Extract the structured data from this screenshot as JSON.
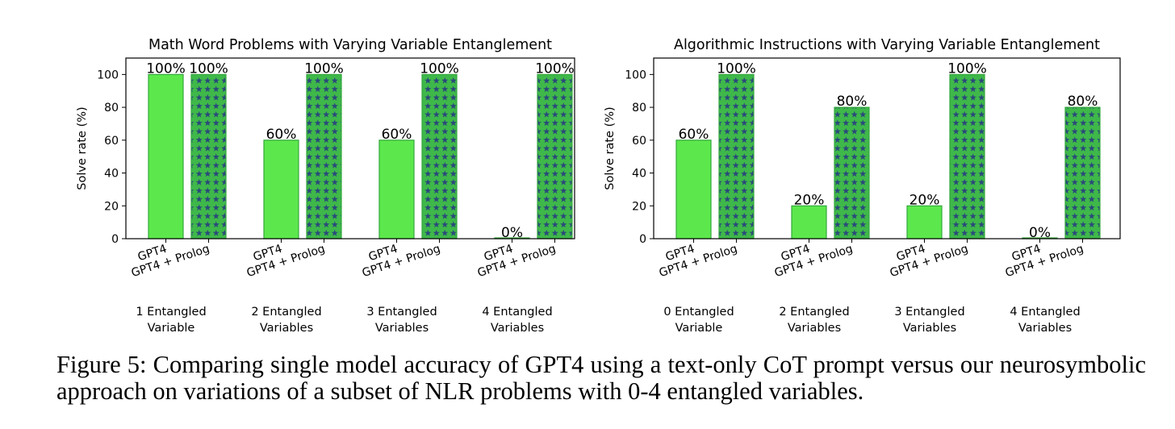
{
  "chart_data": [
    {
      "type": "bar",
      "title": "Math Word Problems with Varying Variable Entanglement",
      "ylabel": "Solve rate (%)",
      "ylim": [
        0,
        110
      ],
      "yticks": [
        0,
        20,
        40,
        60,
        80,
        100
      ],
      "bar_labels": [
        "GPT4",
        "GPT4 + Prolog"
      ],
      "groups": [
        {
          "label": [
            "1 Entangled",
            "Variable"
          ],
          "values": [
            100,
            100
          ],
          "data_labels": [
            "100%",
            "100%"
          ]
        },
        {
          "label": [
            "2 Entangled",
            "Variables"
          ],
          "values": [
            60,
            100
          ],
          "data_labels": [
            "60%",
            "100%"
          ]
        },
        {
          "label": [
            "3 Entangled",
            "Variables"
          ],
          "values": [
            60,
            100
          ],
          "data_labels": [
            "60%",
            "100%"
          ]
        },
        {
          "label": [
            "4 Entangled",
            "Variables"
          ],
          "values": [
            0,
            100
          ],
          "data_labels": [
            "0%",
            "100%"
          ]
        }
      ],
      "series": [
        {
          "name": "GPT4",
          "values": [
            100,
            60,
            60,
            0
          ],
          "fill": "#5ce84c",
          "pattern": "solid"
        },
        {
          "name": "GPT4 + Prolog",
          "values": [
            100,
            100,
            100,
            100
          ],
          "fill": "#3fb84a",
          "pattern": "stars"
        }
      ]
    },
    {
      "type": "bar",
      "title": "Algorithmic Instructions with Varying Variable Entanglement",
      "ylabel": "Solve rate (%)",
      "ylim": [
        0,
        110
      ],
      "yticks": [
        0,
        20,
        40,
        60,
        80,
        100
      ],
      "bar_labels": [
        "GPT4",
        "GPT4 + Prolog"
      ],
      "groups": [
        {
          "label": [
            "0 Entangled",
            "Variable"
          ],
          "values": [
            60,
            100
          ],
          "data_labels": [
            "60%",
            "100%"
          ]
        },
        {
          "label": [
            "2 Entangled",
            "Variables"
          ],
          "values": [
            20,
            80
          ],
          "data_labels": [
            "20%",
            "80%"
          ]
        },
        {
          "label": [
            "3 Entangled",
            "Variables"
          ],
          "values": [
            20,
            100
          ],
          "data_labels": [
            "20%",
            "100%"
          ]
        },
        {
          "label": [
            "4 Entangled",
            "Variables"
          ],
          "values": [
            0,
            80
          ],
          "data_labels": [
            "0%",
            "80%"
          ]
        }
      ],
      "series": [
        {
          "name": "GPT4",
          "values": [
            60,
            20,
            20,
            0
          ],
          "fill": "#5ce84c",
          "pattern": "solid"
        },
        {
          "name": "GPT4 + Prolog",
          "values": [
            100,
            80,
            100,
            80
          ],
          "fill": "#3fb84a",
          "pattern": "stars"
        }
      ]
    }
  ],
  "caption": "Figure 5: Comparing single model accuracy of GPT4 using a text-only CoT prompt versus our neurosymbolic approach on variations of a subset of NLR problems with 0-4 entangled variables.",
  "colors": {
    "bar_solid": "#5ce84c",
    "bar_solid_edge": "#34a83c",
    "bar_pattern": "#3fb84a",
    "star": "#2a4a7a",
    "axis": "#000000"
  }
}
